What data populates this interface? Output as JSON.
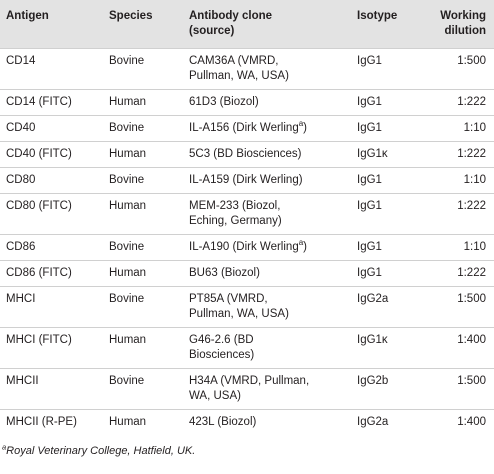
{
  "table": {
    "header": [
      "Antigen",
      "Species",
      [
        "Antibody clone",
        "(source)"
      ],
      "Isotype",
      [
        "Working",
        "dilution"
      ]
    ],
    "rows": [
      [
        "CD14",
        "Bovine",
        [
          "CAM36A (VMRD,",
          "Pullman, WA, USA)"
        ],
        "IgG1",
        "1:500"
      ],
      [
        "CD14 (FITC)",
        "Human",
        "61D3 (Biozol)",
        "IgG1",
        "1:222"
      ],
      [
        "CD40",
        "Bovine",
        {
          "text": "IL-A156 (Dirk Werling",
          "sup": "a",
          "tail": ")"
        },
        "IgG1",
        "1:10"
      ],
      [
        "CD40 (FITC)",
        "Human",
        "5C3 (BD Biosciences)",
        "IgG1κ",
        "1:222"
      ],
      [
        "CD80",
        "Bovine",
        "IL-A159 (Dirk Werling)",
        "IgG1",
        "1:10"
      ],
      [
        "CD80 (FITC)",
        "Human",
        [
          "MEM-233 (Biozol,",
          "Eching, Germany)"
        ],
        "IgG1",
        "1:222"
      ],
      [
        "CD86",
        "Bovine",
        {
          "text": "IL-A190 (Dirk Werling",
          "sup": "a",
          "tail": ")"
        },
        "IgG1",
        "1:10"
      ],
      [
        "CD86 (FITC)",
        "Human",
        "BU63 (Biozol)",
        "IgG1",
        "1:222"
      ],
      [
        "MHCI",
        "Bovine",
        [
          "PT85A (VMRD,",
          "Pullman, WA, USA)"
        ],
        "IgG2a",
        "1:500"
      ],
      [
        "MHCI (FITC)",
        "Human",
        [
          "G46-2.6 (BD",
          "Biosciences)"
        ],
        "IgG1κ",
        "1:400"
      ],
      [
        "MHCII",
        "Bovine",
        [
          "H34A (VMRD, Pullman,",
          "WA, USA)"
        ],
        "IgG2b",
        "1:500"
      ],
      [
        "MHCII (R-PE)",
        "Human",
        "423L (Biozol)",
        "IgG2a",
        "1:400"
      ]
    ]
  },
  "footnote": {
    "mark": "a",
    "text": "Royal Veterinary College, Hatfield, UK."
  }
}
